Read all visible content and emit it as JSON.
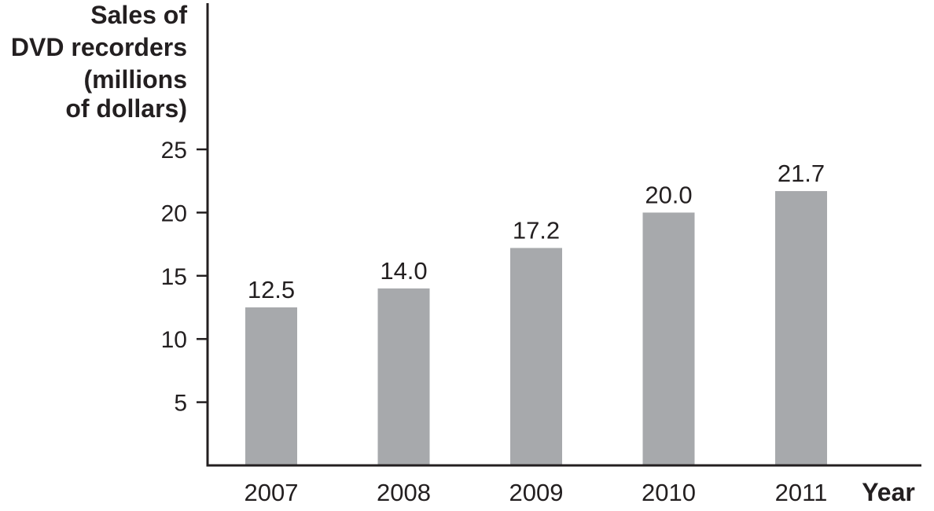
{
  "chart_data": {
    "type": "bar",
    "title": "",
    "ylabel_lines": [
      "Sales of",
      "DVD recorders",
      "(millions",
      "of dollars)"
    ],
    "xlabel": "Year",
    "categories": [
      "2007",
      "2008",
      "2009",
      "2010",
      "2011"
    ],
    "values": [
      12.5,
      14.0,
      17.2,
      20.0,
      21.7
    ],
    "value_labels": [
      "12.5",
      "14.0",
      "17.2",
      "20.0",
      "21.7"
    ],
    "yticks": [
      5,
      10,
      15,
      20,
      25
    ],
    "ylim": [
      0,
      26
    ],
    "grid": false,
    "legend": "none",
    "colors": {
      "bar": "#a7a9ac",
      "axis": "#231f20",
      "text": "#231f20"
    }
  }
}
